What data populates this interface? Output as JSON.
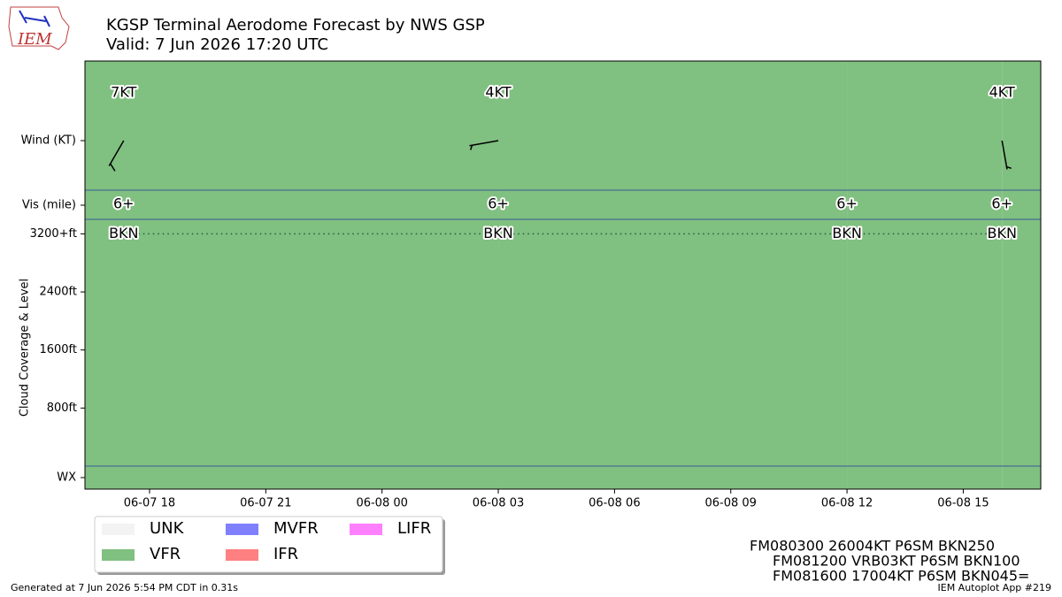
{
  "logo": "IEM",
  "chart_data": {
    "type": "taf",
    "title": "KGSP Terminal Aerodome Forecast by NWS GSP",
    "subtitle": "Valid: 7 Jun 2026 17:20 UTC",
    "ylabel": "Cloud Coverage & Level",
    "row_labels": {
      "wind": "Wind (KT)",
      "vis": "Vis (mile)",
      "wx": "WX"
    },
    "xlim": [
      "2026-06-07T16:20",
      "2026-06-08T17:00"
    ],
    "xticks": [
      {
        "value": "2026-06-07T18:00",
        "label": "06-07 18"
      },
      {
        "value": "2026-06-07T21:00",
        "label": "06-07 21"
      },
      {
        "value": "2026-06-08T00:00",
        "label": "06-08 00"
      },
      {
        "value": "2026-06-08T03:00",
        "label": "06-08 03"
      },
      {
        "value": "2026-06-08T06:00",
        "label": "06-08 06"
      },
      {
        "value": "2026-06-08T09:00",
        "label": "06-08 09"
      },
      {
        "value": "2026-06-08T12:00",
        "label": "06-08 12"
      },
      {
        "value": "2026-06-08T15:00",
        "label": "06-08 15"
      }
    ],
    "ylim": [
      0,
      3400
    ],
    "yticks": [
      {
        "value": 800,
        "label": "800ft"
      },
      {
        "value": 1600,
        "label": "1600ft"
      },
      {
        "value": 2400,
        "label": "2400ft"
      },
      {
        "value": 3200,
        "label": "3200+ft"
      }
    ],
    "x": [
      "2026-06-07T17:20",
      "2026-06-08T03:00",
      "2026-06-08T12:00",
      "2026-06-08T16:00"
    ],
    "wind_direction": [
      210,
      260,
      null,
      170
    ],
    "wind_speed": [
      7,
      4,
      null,
      4
    ],
    "wind_speed_labels": [
      "7KT",
      "4KT",
      null,
      "4KT"
    ],
    "visibility": [
      "6+",
      "6+",
      "6+",
      "6+"
    ],
    "cloud_level": [
      3200,
      3200,
      3200,
      3200
    ],
    "cloud_cover": [
      "BKN",
      "BKN",
      "BKN",
      "BKN"
    ],
    "flight_category": [
      "VFR",
      "VFR",
      "VFR",
      "VFR"
    ],
    "legend": [
      {
        "name": "UNK",
        "color": "#f3f3f3"
      },
      {
        "name": "VFR",
        "color": "#80c080"
      },
      {
        "name": "MVFR",
        "color": "#8080ff"
      },
      {
        "name": "IFR",
        "color": "#ff8080"
      },
      {
        "name": "LIFR",
        "color": "#ff80ff"
      }
    ],
    "taf_lines": [
      "FM080300 26004KT P6SM BKN250",
      "FM081200 VRB03KT P6SM BKN100",
      "FM081600 17004KT P6SM BKN045="
    ]
  },
  "footer": {
    "left": "Generated at 7 Jun 2026 5:54 PM CDT in 0.31s",
    "right": "IEM Autoplot App #219"
  }
}
